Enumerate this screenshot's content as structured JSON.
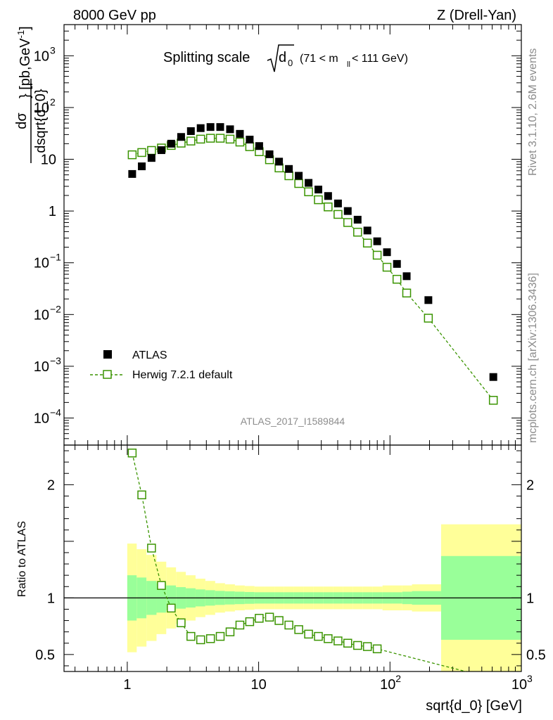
{
  "header": {
    "left": "8000 GeV pp",
    "right": "Z (Drell-Yan)"
  },
  "side_labels": {
    "rivet": "Rivet 3.1.10,  2.6M events",
    "mcplots": "mcplots.cern.ch [arXiv:1306.3436]"
  },
  "chart_data": [
    {
      "type": "scatter",
      "panel": "main",
      "title": "Splitting scale √d₀ (71 < m_ll < 111 GeV)",
      "title_parts": {
        "main": "Splitting scale",
        "sub": "0",
        "d": "d",
        "range": "(71 < m",
        "range_sub": "ll",
        "range_end": " < 111 GeV)"
      },
      "watermark": "ATLAS_2017_I1589844",
      "ylabel": "dσ/dsqrt{d_0} [pb,GeV⁻¹]",
      "ylabel_parts": {
        "num": "dσ",
        "den": "dsqrt{d_0}",
        "unit": "} [pb,GeV",
        "unit_sup": "-1",
        "unit_end": "]"
      },
      "xscale": "log",
      "yscale": "log",
      "xlim": [
        0.33,
        1000
      ],
      "ylim": [
        3e-05,
        4000
      ],
      "ytick_labels": [
        {
          "v": 0.0001,
          "base": "10",
          "exp": "−4"
        },
        {
          "v": 0.001,
          "base": "10",
          "exp": "−3"
        },
        {
          "v": 0.01,
          "base": "10",
          "exp": "−2"
        },
        {
          "v": 0.1,
          "base": "10",
          "exp": "−1"
        },
        {
          "v": 1,
          "base": "1",
          "exp": ""
        },
        {
          "v": 10,
          "base": "10",
          "exp": ""
        },
        {
          "v": 100,
          "base": "10",
          "exp": "2"
        },
        {
          "v": 1000,
          "base": "10",
          "exp": "3"
        }
      ],
      "legend": {
        "position": "bottom-left",
        "entries": [
          "ATLAS",
          "Herwig 7.2.1 default"
        ]
      },
      "series": [
        {
          "name": "ATLAS",
          "marker": "filled-square",
          "color": "#000000",
          "x": [
            1.09,
            1.29,
            1.53,
            1.82,
            2.16,
            2.57,
            3.05,
            3.62,
            4.3,
            5.1,
            6.06,
            7.2,
            8.55,
            10.1,
            12.1,
            14.3,
            17.0,
            20.2,
            24.0,
            28.5,
            33.8,
            40.2,
            47.7,
            56.7,
            67.3,
            79.9,
            94.9,
            113,
            134,
            196,
            612
          ],
          "y": [
            5.2,
            7.3,
            10.6,
            15,
            20,
            27,
            35,
            40,
            42,
            42,
            38,
            31,
            24,
            18,
            12.5,
            9,
            6.5,
            4.8,
            3.5,
            2.6,
            1.95,
            1.4,
            1.0,
            0.68,
            0.42,
            0.26,
            0.16,
            0.095,
            0.055,
            0.019,
            0.00062
          ]
        },
        {
          "name": "Herwig 7.2.1 default",
          "marker": "open-square",
          "line": "dashed",
          "color": "#3a9400",
          "x": [
            1.09,
            1.29,
            1.53,
            1.82,
            2.16,
            2.57,
            3.05,
            3.62,
            4.3,
            5.1,
            6.06,
            7.2,
            8.55,
            10.1,
            12.1,
            14.3,
            17.0,
            20.2,
            24.0,
            28.5,
            33.8,
            40.2,
            47.7,
            56.7,
            67.3,
            79.9,
            94.9,
            113,
            134,
            196,
            612
          ],
          "y": [
            12.2,
            13.5,
            14.8,
            16.5,
            18.5,
            20.5,
            22.5,
            24.5,
            25.5,
            25.5,
            24.5,
            21.5,
            17.5,
            14,
            9.8,
            6.8,
            4.8,
            3.4,
            2.35,
            1.65,
            1.2,
            0.86,
            0.6,
            0.39,
            0.24,
            0.14,
            0.082,
            0.048,
            0.026,
            0.0085,
            0.00022
          ]
        }
      ]
    },
    {
      "type": "line",
      "panel": "ratio",
      "ylabel": "Ratio to ATLAS",
      "xlabel": "sqrt{d_0} [GeV]",
      "xscale": "log",
      "xlim": [
        0.33,
        1000
      ],
      "ylim": [
        0.35,
        2.35
      ],
      "yticks": [
        0.5,
        1,
        2
      ],
      "xtick_labels": [
        {
          "v": 1,
          "base": "1",
          "exp": ""
        },
        {
          "v": 10,
          "base": "10",
          "exp": ""
        },
        {
          "v": 100,
          "base": "10",
          "exp": "2"
        },
        {
          "v": 1000,
          "base": "10",
          "exp": "3"
        }
      ],
      "band_colors": {
        "outer": "#ffff99",
        "inner": "#99ff99"
      },
      "bins": [
        {
          "lo": 1.0,
          "hi": 1.18,
          "out": 0.48,
          "in": 0.2
        },
        {
          "lo": 1.18,
          "hi": 1.4,
          "out": 0.43,
          "in": 0.18
        },
        {
          "lo": 1.4,
          "hi": 1.67,
          "out": 0.38,
          "in": 0.15
        },
        {
          "lo": 1.67,
          "hi": 1.98,
          "out": 0.32,
          "in": 0.13
        },
        {
          "lo": 1.98,
          "hi": 2.35,
          "out": 0.27,
          "in": 0.11
        },
        {
          "lo": 2.35,
          "hi": 2.79,
          "out": 0.23,
          "in": 0.095
        },
        {
          "lo": 2.79,
          "hi": 3.31,
          "out": 0.2,
          "in": 0.085
        },
        {
          "lo": 3.31,
          "hi": 3.93,
          "out": 0.17,
          "in": 0.075
        },
        {
          "lo": 3.93,
          "hi": 4.67,
          "out": 0.15,
          "in": 0.068
        },
        {
          "lo": 4.67,
          "hi": 5.55,
          "out": 0.13,
          "in": 0.062
        },
        {
          "lo": 5.55,
          "hi": 6.6,
          "out": 0.12,
          "in": 0.058
        },
        {
          "lo": 6.6,
          "hi": 7.84,
          "out": 0.11,
          "in": 0.055
        },
        {
          "lo": 7.84,
          "hi": 9.3,
          "out": 0.105,
          "in": 0.052
        },
        {
          "lo": 9.3,
          "hi": 11.1,
          "out": 0.1,
          "in": 0.05
        },
        {
          "lo": 11.1,
          "hi": 13.2,
          "out": 0.1,
          "in": 0.05
        },
        {
          "lo": 13.2,
          "hi": 15.6,
          "out": 0.1,
          "in": 0.05
        },
        {
          "lo": 15.6,
          "hi": 18.6,
          "out": 0.1,
          "in": 0.05
        },
        {
          "lo": 18.6,
          "hi": 22.1,
          "out": 0.1,
          "in": 0.05
        },
        {
          "lo": 22.1,
          "hi": 26.2,
          "out": 0.1,
          "in": 0.05
        },
        {
          "lo": 26.2,
          "hi": 31.2,
          "out": 0.1,
          "in": 0.05
        },
        {
          "lo": 31.2,
          "hi": 37.0,
          "out": 0.1,
          "in": 0.05
        },
        {
          "lo": 37.0,
          "hi": 44.0,
          "out": 0.1,
          "in": 0.05
        },
        {
          "lo": 44.0,
          "hi": 52.3,
          "out": 0.1,
          "in": 0.05
        },
        {
          "lo": 52.3,
          "hi": 62.1,
          "out": 0.1,
          "in": 0.05
        },
        {
          "lo": 62.1,
          "hi": 73.8,
          "out": 0.1,
          "in": 0.05
        },
        {
          "lo": 73.8,
          "hi": 87.7,
          "out": 0.1,
          "in": 0.05
        },
        {
          "lo": 87.7,
          "hi": 104,
          "out": 0.11,
          "in": 0.05
        },
        {
          "lo": 104,
          "hi": 124,
          "out": 0.11,
          "in": 0.05
        },
        {
          "lo": 124,
          "hi": 147,
          "out": 0.11,
          "in": 0.055
        },
        {
          "lo": 147,
          "hi": 245,
          "out": 0.12,
          "in": 0.06
        },
        {
          "lo": 245,
          "hi": 1000,
          "out": 0.65,
          "in": 0.37
        }
      ],
      "series": [
        {
          "name": "Herwig 7.2.1 default",
          "color": "#3a9400",
          "line": "dashed",
          "marker": "open-square",
          "x": [
            1.09,
            1.29,
            1.53,
            1.82,
            2.16,
            2.57,
            3.05,
            3.62,
            4.3,
            5.1,
            6.06,
            7.2,
            8.55,
            10.1,
            12.1,
            14.3,
            17.0,
            20.2,
            24.0,
            28.5,
            33.8,
            40.2,
            47.7,
            56.7,
            67.3,
            79.9
          ],
          "y": [
            2.28,
            1.91,
            1.44,
            1.11,
            0.91,
            0.78,
            0.66,
            0.63,
            0.64,
            0.66,
            0.7,
            0.76,
            0.79,
            0.82,
            0.83,
            0.8,
            0.76,
            0.72,
            0.68,
            0.66,
            0.64,
            0.62,
            0.6,
            0.58,
            0.57,
            0.55
          ],
          "line_end": {
            "x": 700,
            "y": 0.27
          }
        }
      ]
    }
  ]
}
